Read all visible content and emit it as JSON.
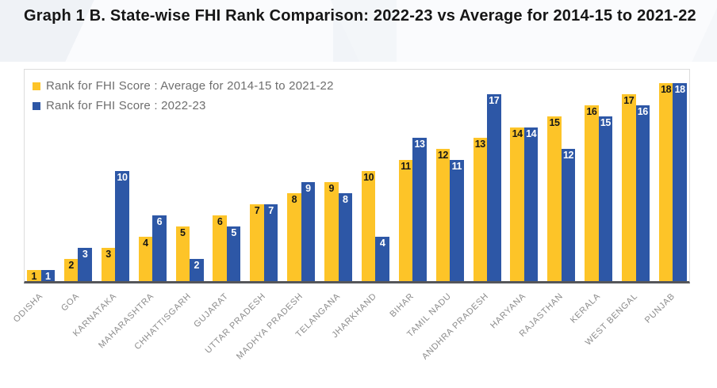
{
  "header": {
    "title": "Graph 1 B. State-wise FHI Rank Comparison: 2022-23 vs Average for 2014-15 to 2021-22"
  },
  "chart_data": {
    "type": "bar",
    "title": "Graph 1 B. State-wise FHI Rank Comparison: 2022-23 vs Average for 2014-15 to 2021-22",
    "categories": [
      "ODISHA",
      "GOA",
      "KARNATAKA",
      "MAHARASHTRA",
      "CHHATTISGARH",
      "GUJARAT",
      "UTTAR PRADESH",
      "MADHYA PRADESH",
      "TELANGANA",
      "JHARKHAND",
      "BIHAR",
      "TAMIL NADU",
      "ANDHRA PRADESH",
      "HARYANA",
      "RAJASTHAN",
      "KERALA",
      "WEST BENGAL",
      "PUNJAB"
    ],
    "series": [
      {
        "name": "Rank for FHI Score : Average for 2014-15 to 2021-22",
        "color": "#FDC428",
        "label_color": "#161616",
        "values": [
          1,
          2,
          3,
          4,
          5,
          6,
          7,
          8,
          9,
          10,
          11,
          12,
          13,
          14,
          15,
          16,
          17,
          18
        ]
      },
      {
        "name": "Rank for FHI Score : 2022-23",
        "color": "#2D57A6",
        "label_color": "#FFFFFF",
        "values": [
          1,
          3,
          10,
          6,
          2,
          5,
          7,
          9,
          8,
          4,
          13,
          11,
          17,
          14,
          12,
          15,
          16,
          18
        ]
      }
    ],
    "ylim": [
      0,
      18
    ],
    "grid": false,
    "y_axis_visible": false,
    "legend_position": "top-left",
    "bar_labels": "inside-top",
    "axis_line_color": "#55565a",
    "xlabel": "",
    "ylabel": ""
  }
}
